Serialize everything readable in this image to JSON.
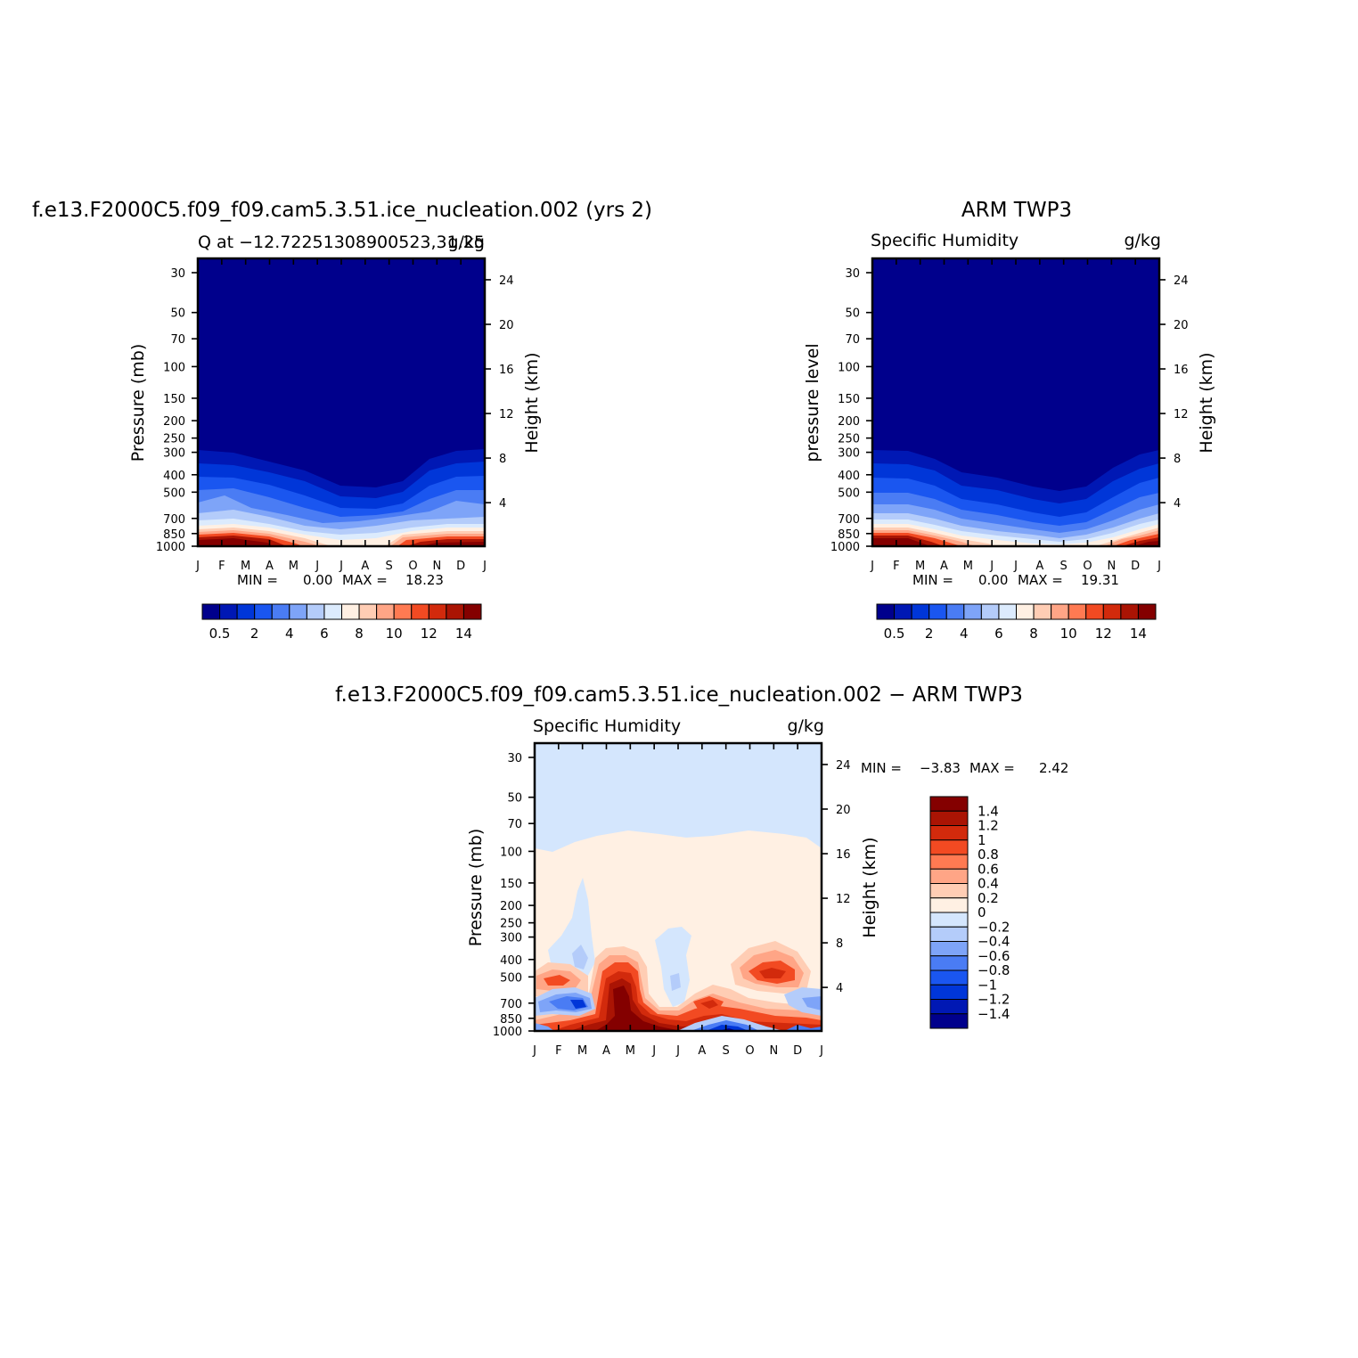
{
  "colors": {
    "abs_scale": [
      "#00008c",
      "#0018b4",
      "#0036d8",
      "#1a56f0",
      "#4a7cf4",
      "#7ea4f8",
      "#b4ccfa",
      "#dcebfd",
      "#fff0e3",
      "#ffcdb4",
      "#ffa586",
      "#ff7a52",
      "#f24a22",
      "#d22a0c",
      "#aa1404",
      "#840000"
    ],
    "diff_scale": [
      "#00008c",
      "#0018b4",
      "#0036d8",
      "#1a56f0",
      "#4a7cf4",
      "#7ea4f8",
      "#b4ccfa",
      "#d4e6fd",
      "#fff0e3",
      "#ffcdb4",
      "#ffa586",
      "#ff7a52",
      "#f24a22",
      "#d22a0c",
      "#aa1404",
      "#840000"
    ]
  },
  "chart_data": [
    {
      "type": "heatmap",
      "title": "f.e13.F2000C5.f09_f09.cam5.3.51.ice_nucleation.002 (yrs 2)",
      "subtitle_left": "Q at −12.72251308900523,31.25",
      "subtitle_right": "g/kg",
      "ylabel": "Pressure (mb)",
      "ylabel_right": "Height (km)",
      "x_ticks": [
        "J",
        "F",
        "M",
        "A",
        "M",
        "J",
        "J",
        "A",
        "S",
        "O",
        "N",
        "D",
        "J"
      ],
      "y_ticks": [
        "30",
        "50",
        "70",
        "100",
        "150",
        "200",
        "250",
        "300",
        "400",
        "500",
        "700",
        "850",
        "1000"
      ],
      "y_ticks_right": [
        "24",
        "20",
        "16",
        "12",
        "8",
        "4"
      ],
      "min_label": "MIN =",
      "min_value": "0.00",
      "max_label": "MAX =",
      "max_value": "18.23",
      "colorbar": {
        "orientation": "horizontal",
        "levels": [
          0.5,
          1,
          2,
          3,
          4,
          5,
          6,
          7,
          8,
          9,
          10,
          11,
          12,
          13,
          14
        ],
        "tick_labels": [
          "0.5",
          "2",
          "4",
          "6",
          "8",
          "10",
          "12",
          "14"
        ]
      }
    },
    {
      "type": "heatmap",
      "title": "ARM TWP3",
      "subtitle_left": "Specific Humidity",
      "subtitle_right": "g/kg",
      "ylabel": "pressure level",
      "ylabel_right": "Height (km)",
      "x_ticks": [
        "J",
        "F",
        "M",
        "A",
        "M",
        "J",
        "J",
        "A",
        "S",
        "O",
        "N",
        "D",
        "J"
      ],
      "y_ticks": [
        "30",
        "50",
        "70",
        "100",
        "150",
        "200",
        "250",
        "300",
        "400",
        "500",
        "700",
        "850",
        "1000"
      ],
      "y_ticks_right": [
        "24",
        "20",
        "16",
        "12",
        "8",
        "4"
      ],
      "min_label": "MIN =",
      "min_value": "0.00",
      "max_label": "MAX =",
      "max_value": "19.31",
      "colorbar": {
        "orientation": "horizontal",
        "levels": [
          0.5,
          1,
          2,
          3,
          4,
          5,
          6,
          7,
          8,
          9,
          10,
          11,
          12,
          13,
          14
        ],
        "tick_labels": [
          "0.5",
          "2",
          "4",
          "6",
          "8",
          "10",
          "12",
          "14"
        ]
      }
    },
    {
      "type": "heatmap",
      "title": "f.e13.F2000C5.f09_f09.cam5.3.51.ice_nucleation.002 − ARM TWP3",
      "subtitle_left": "Specific Humidity",
      "subtitle_right": "g/kg",
      "ylabel": "Pressure (mb)",
      "ylabel_right": "Height (km)",
      "x_ticks": [
        "J",
        "F",
        "M",
        "A",
        "M",
        "J",
        "J",
        "A",
        "S",
        "O",
        "N",
        "D",
        "J"
      ],
      "y_ticks": [
        "30",
        "50",
        "70",
        "100",
        "150",
        "200",
        "250",
        "300",
        "400",
        "500",
        "700",
        "850",
        "1000"
      ],
      "y_ticks_right": [
        "24",
        "20",
        "16",
        "12",
        "8",
        "4"
      ],
      "min_label": "MIN =",
      "min_value": "−3.83",
      "max_label": "MAX =",
      "max_value": "2.42",
      "colorbar": {
        "orientation": "vertical",
        "tick_labels": [
          "1.4",
          "1.2",
          "1",
          "0.8",
          "0.6",
          "0.4",
          "0.2",
          "0",
          "−0.2",
          "−0.4",
          "−0.6",
          "−0.8",
          "−1",
          "−1.2",
          "−1.4"
        ]
      }
    }
  ]
}
